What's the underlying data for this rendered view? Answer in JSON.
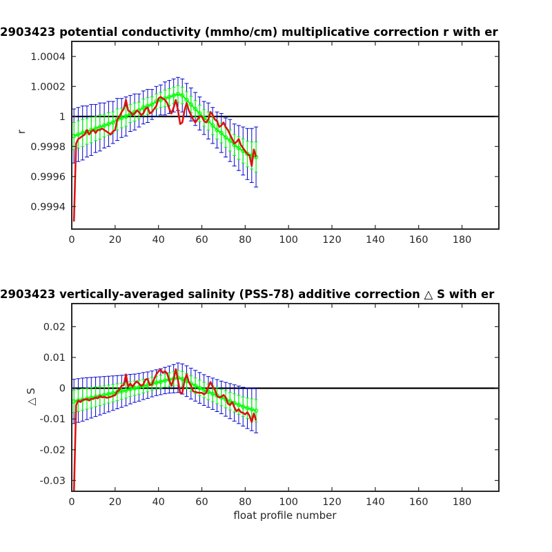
{
  "colors": {
    "background": "#ffffff",
    "zero_line": "#000000",
    "error_bars": "#0000cc",
    "fit_band": "#00ff00",
    "fit_markers": "#00ff00",
    "raw_estimate": "#dd1111"
  },
  "chart_data": [
    {
      "type": "line",
      "title": "2903423 potential conductivity (mmho/cm) multiplicative correction r with er",
      "xlabel": "",
      "ylabel": "r",
      "xlim": [
        0,
        197
      ],
      "ylim": [
        0.99925,
        1.0005
      ],
      "xticks": [
        0,
        20,
        40,
        60,
        80,
        100,
        120,
        140,
        160,
        180
      ],
      "xtick_labels": [
        "0",
        "20",
        "40",
        "60",
        "80",
        "100",
        "120",
        "140",
        "160",
        "180"
      ],
      "yticks": [
        0.9994,
        0.9996,
        0.9998,
        1.0,
        1.0002,
        1.0004
      ],
      "ytick_labels": [
        "0.9994",
        "0.9996",
        "0.9998",
        "1",
        "1.0002",
        "1.0004"
      ],
      "reference_line": 1.0,
      "x": [
        1,
        3,
        5,
        7,
        9,
        11,
        13,
        15,
        17,
        19,
        21,
        23,
        25,
        27,
        29,
        31,
        33,
        35,
        37,
        39,
        41,
        43,
        45,
        47,
        49,
        51,
        53,
        55,
        57,
        59,
        61,
        63,
        65,
        67,
        69,
        71,
        73,
        75,
        77,
        79,
        81,
        83,
        85
      ],
      "series": [
        {
          "role": "fit",
          "values": [
            0.99987,
            0.99988,
            0.99989,
            0.9999,
            0.99991,
            0.99992,
            0.99993,
            0.99994,
            0.99995,
            0.99996,
            0.99998,
            0.99999,
            1.0,
            1.00002,
            1.00003,
            1.00004,
            1.00006,
            1.00007,
            1.00008,
            1.0001,
            1.00011,
            1.00012,
            1.00013,
            1.00014,
            1.00015,
            1.00014,
            1.00011,
            1.00008,
            1.00005,
            1.00002,
            0.99999,
            0.99997,
            0.99994,
            0.99991,
            0.99989,
            0.99986,
            0.99984,
            0.99981,
            0.99979,
            0.99977,
            0.99975,
            0.99974,
            0.99973
          ]
        },
        {
          "role": "error_band_half_width",
          "values": [
            0.00018,
            0.00018,
            0.00018,
            0.00017,
            0.00017,
            0.00016,
            0.00016,
            0.00015,
            0.00015,
            0.00014,
            0.00014,
            0.00013,
            0.00013,
            0.00012,
            0.00012,
            0.00011,
            0.00011,
            0.00011,
            0.0001,
            0.0001,
            0.0001,
            0.00011,
            0.00011,
            0.00011,
            0.00011,
            0.00011,
            0.00011,
            0.00011,
            0.00011,
            0.00011,
            0.00011,
            0.00012,
            0.00012,
            0.00012,
            0.00013,
            0.00013,
            0.00014,
            0.00014,
            0.00015,
            0.00016,
            0.00017,
            0.00018,
            0.0002
          ]
        },
        {
          "role": "raw",
          "x": [
            1,
            2,
            3,
            4,
            5,
            6,
            7,
            8,
            9,
            10,
            11,
            12,
            13,
            14,
            15,
            16,
            17,
            18,
            19,
            20,
            21,
            22,
            23,
            24,
            25,
            26,
            27,
            28,
            29,
            30,
            31,
            32,
            33,
            34,
            35,
            36,
            37,
            38,
            39,
            40,
            41,
            42,
            43,
            44,
            45,
            46,
            47,
            48,
            49,
            50,
            51,
            52,
            53,
            54,
            55,
            56,
            57,
            58,
            59,
            60,
            61,
            62,
            63,
            64,
            65,
            66,
            67,
            68,
            69,
            70,
            71,
            72,
            73,
            74,
            75,
            76,
            77,
            78,
            79,
            80,
            81,
            82,
            83,
            84,
            85
          ],
          "values": [
            0.9993,
            0.99982,
            0.99985,
            0.99986,
            0.99987,
            0.99988,
            0.99991,
            0.99988,
            0.9999,
            0.99991,
            0.99989,
            0.99991,
            0.99991,
            0.99992,
            0.99991,
            0.9999,
            0.99989,
            0.99988,
            0.9999,
            0.99991,
            0.99998,
            1.0,
            1.00003,
            1.00005,
            1.00011,
            1.00004,
            1.00003,
            1.00001,
            1.00002,
            1.00004,
            1.00003,
            1.00001,
            1.00002,
            1.00005,
            1.00006,
            1.00002,
            1.00003,
            1.00005,
            1.00007,
            1.00012,
            1.00013,
            1.00012,
            1.00011,
            1.00009,
            1.00005,
            1.00002,
            1.00006,
            1.00011,
            1.00004,
            0.99995,
            0.99996,
            1.00004,
            1.00009,
            1.00004,
            1.00001,
            0.99998,
            0.99996,
            0.99998,
            1.0,
            1.0,
            0.99997,
            0.99996,
            0.99998,
            1.00003,
            1.00001,
            0.99998,
            0.99997,
            0.99993,
            0.99994,
            0.99996,
            0.99993,
            0.99991,
            0.99988,
            0.99985,
            0.99982,
            0.99983,
            0.99985,
            0.99981,
            0.99979,
            0.99977,
            0.99975,
            0.99974,
            0.99967,
            0.99978,
            0.99973
          ]
        }
      ]
    },
    {
      "type": "line",
      "title": "2903423 vertically-averaged salinity (PSS-78) additive correction △ S with er",
      "xlabel": "float profile number",
      "ylabel": "△ S",
      "xlim": [
        0,
        197
      ],
      "ylim": [
        -0.0335,
        0.0275
      ],
      "xticks": [
        0,
        20,
        40,
        60,
        80,
        100,
        120,
        140,
        160,
        180
      ],
      "xtick_labels": [
        "0",
        "20",
        "40",
        "60",
        "80",
        "100",
        "120",
        "140",
        "160",
        "180"
      ],
      "yticks": [
        -0.03,
        -0.02,
        -0.01,
        0,
        0.01,
        0.02
      ],
      "ytick_labels": [
        "-0.03",
        "-0.02",
        "-0.01",
        "0",
        "0.01",
        "0.02"
      ],
      "reference_line": 0,
      "x": [
        1,
        3,
        5,
        7,
        9,
        11,
        13,
        15,
        17,
        19,
        21,
        23,
        25,
        27,
        29,
        31,
        33,
        35,
        37,
        39,
        41,
        43,
        45,
        47,
        49,
        51,
        53,
        55,
        57,
        59,
        61,
        63,
        65,
        67,
        69,
        71,
        73,
        75,
        77,
        79,
        81,
        83,
        85
      ],
      "series": [
        {
          "role": "fit",
          "values": [
            -0.0043,
            -0.004,
            -0.0037,
            -0.0034,
            -0.0031,
            -0.0028,
            -0.0025,
            -0.0022,
            -0.0019,
            -0.0016,
            -0.0013,
            -0.001,
            -0.0007,
            -0.0003,
            0.0,
            0.0003,
            0.0007,
            0.001,
            0.0014,
            0.0018,
            0.0021,
            0.0025,
            0.0028,
            0.0031,
            0.0034,
            0.003,
            0.0023,
            0.0015,
            0.0008,
            0.0001,
            -0.0006,
            -0.0012,
            -0.0018,
            -0.0024,
            -0.003,
            -0.0036,
            -0.0042,
            -0.0048,
            -0.0054,
            -0.006,
            -0.0065,
            -0.0069,
            -0.0073
          ]
        },
        {
          "role": "error_band_half_width",
          "values": [
            0.0072,
            0.0071,
            0.007,
            0.0068,
            0.0066,
            0.0064,
            0.0062,
            0.006,
            0.0058,
            0.0056,
            0.0054,
            0.0052,
            0.005,
            0.0048,
            0.0046,
            0.0045,
            0.0044,
            0.0043,
            0.0042,
            0.0042,
            0.0042,
            0.0043,
            0.0044,
            0.0046,
            0.0048,
            0.0049,
            0.005,
            0.005,
            0.005,
            0.005,
            0.005,
            0.005,
            0.0051,
            0.0052,
            0.0053,
            0.0055,
            0.0057,
            0.0059,
            0.0061,
            0.0063,
            0.0066,
            0.0069,
            0.0072
          ]
        },
        {
          "role": "raw",
          "x": [
            1,
            2,
            3,
            4,
            5,
            6,
            7,
            8,
            9,
            10,
            11,
            12,
            13,
            14,
            15,
            16,
            17,
            18,
            19,
            20,
            21,
            22,
            23,
            24,
            25,
            26,
            27,
            28,
            29,
            30,
            31,
            32,
            33,
            34,
            35,
            36,
            37,
            38,
            39,
            40,
            41,
            42,
            43,
            44,
            45,
            46,
            47,
            48,
            49,
            50,
            51,
            52,
            53,
            54,
            55,
            56,
            57,
            58,
            59,
            60,
            61,
            62,
            63,
            64,
            65,
            66,
            67,
            68,
            69,
            70,
            71,
            72,
            73,
            74,
            75,
            76,
            77,
            78,
            79,
            80,
            81,
            82,
            83,
            84,
            85
          ],
          "values": [
            -0.034,
            -0.0055,
            -0.004,
            -0.0045,
            -0.0038,
            -0.0037,
            -0.0035,
            -0.004,
            -0.0035,
            -0.0035,
            -0.003,
            -0.0033,
            -0.0025,
            -0.003,
            -0.0028,
            -0.0031,
            -0.003,
            -0.0028,
            -0.0025,
            -0.0023,
            -0.001,
            -0.0005,
            0.0008,
            0.001,
            0.0045,
            0.0005,
            0.0015,
            0.0005,
            0.0015,
            0.0022,
            0.0015,
            0.0008,
            0.0012,
            0.0028,
            0.003,
            0.001,
            0.0012,
            0.003,
            0.0045,
            0.0055,
            0.006,
            0.005,
            0.0055,
            0.0048,
            0.0025,
            0.0008,
            0.003,
            0.0062,
            0.0025,
            -0.0015,
            -0.0015,
            0.0025,
            0.0045,
            0.002,
            0.0008,
            -0.001,
            -0.0012,
            -0.0014,
            -0.0015,
            -0.0015,
            -0.002,
            -0.0015,
            0.0005,
            0.002,
            0.0005,
            -0.0005,
            -0.0025,
            -0.003,
            -0.0028,
            -0.0022,
            -0.003,
            -0.005,
            -0.0055,
            -0.0045,
            -0.0062,
            -0.0075,
            -0.0068,
            -0.0078,
            -0.008,
            -0.0085,
            -0.0078,
            -0.009,
            -0.011,
            -0.0082,
            -0.0105
          ]
        }
      ]
    }
  ]
}
